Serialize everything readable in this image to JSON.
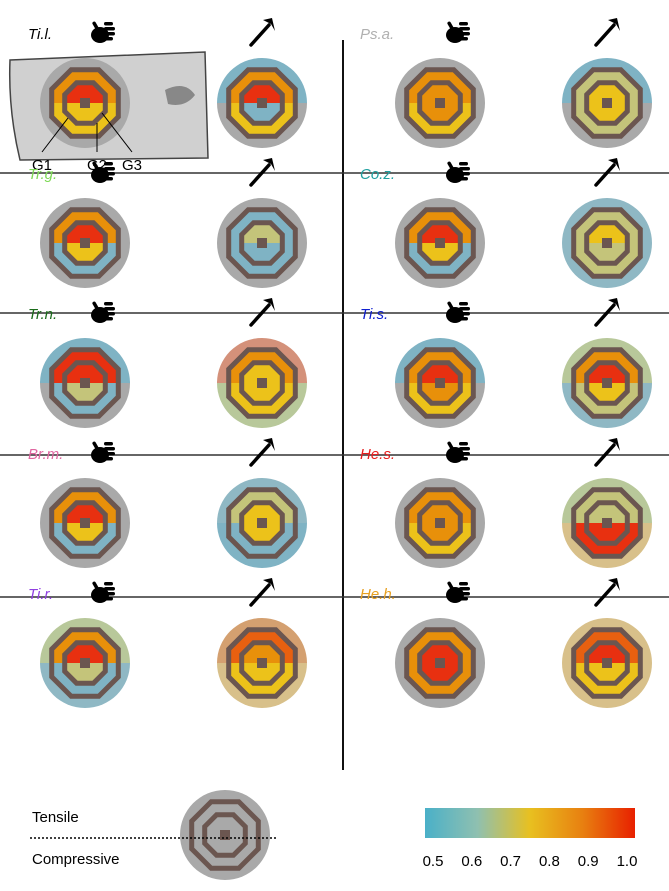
{
  "panels": [
    {
      "label": "Ti.l.",
      "label_color": "#000000",
      "hand": [
        "#a9a9a9",
        "#a9a9a9",
        "#e8900a",
        "#ecc21a",
        "#e83010",
        "#ecc21a"
      ],
      "hammer": [
        "#7fb3c4",
        "#a9a9a9",
        "#e8900a",
        "#ecc21a",
        "#e83010",
        "#7fb3c4"
      ]
    },
    {
      "label": "Ps.a.",
      "label_color": "#b0b0b0",
      "hand": [
        "#a9a9a9",
        "#a9a9a9",
        "#e8900a",
        "#ecc21a",
        "#e8900a",
        "#e8900a"
      ],
      "hammer": [
        "#7fb3c4",
        "#a9a9a9",
        "#c4c47a",
        "#c4c47a",
        "#ecc21a",
        "#ecc21a"
      ]
    },
    {
      "label": "Tr.g.",
      "label_color": "#7ed957",
      "hand": [
        "#a9a9a9",
        "#a9a9a9",
        "#e8900a",
        "#7fb3c4",
        "#e83010",
        "#ecc21a"
      ],
      "hammer": [
        "#a9a9a9",
        "#a9a9a9",
        "#7fb3c4",
        "#7fb3c4",
        "#c4c47a",
        "#7fb3c4"
      ]
    },
    {
      "label": "Co.z.",
      "label_color": "#1fa0a0",
      "hand": [
        "#a9a9a9",
        "#a9a9a9",
        "#e8900a",
        "#7fb3c4",
        "#e83010",
        "#ecc21a"
      ],
      "hammer": [
        "#8fb8c4",
        "#8fb8c4",
        "#c4c47a",
        "#c4c47a",
        "#ecc21a",
        "#c4c47a"
      ]
    },
    {
      "label": "Tr.n.",
      "label_color": "#1a6b1a",
      "hand": [
        "#7fb3c4",
        "#a9a9a9",
        "#e83010",
        "#7fb3c4",
        "#e83010",
        "#c4c47a"
      ],
      "hammer": [
        "#d4917a",
        "#b8c89a",
        "#e8900a",
        "#ecc21a",
        "#ecc21a",
        "#ecc21a"
      ]
    },
    {
      "label": "Ti.s.",
      "label_color": "#1020d0",
      "hand": [
        "#7fb3c4",
        "#a9a9a9",
        "#e8900a",
        "#ecc21a",
        "#e83010",
        "#e8900a"
      ],
      "hammer": [
        "#b8c89a",
        "#8fb8c4",
        "#e8900a",
        "#c4c47a",
        "#e83010",
        "#ecc21a"
      ]
    },
    {
      "label": "Br.m.",
      "label_color": "#e066a0",
      "hand": [
        "#a9a9a9",
        "#a9a9a9",
        "#e8900a",
        "#7fb3c4",
        "#e83010",
        "#ecc21a"
      ],
      "hammer": [
        "#8fb8c4",
        "#7fb3c4",
        "#c4c47a",
        "#7fb3c4",
        "#ecc21a",
        "#ecc21a"
      ]
    },
    {
      "label": "He.s.",
      "label_color": "#e82020",
      "hand": [
        "#a9a9a9",
        "#a9a9a9",
        "#e8900a",
        "#ecc21a",
        "#e8900a",
        "#e8900a"
      ],
      "hammer": [
        "#b8c89a",
        "#d8c08a",
        "#c4c47a",
        "#e83010",
        "#c4c47a",
        "#e83010"
      ]
    },
    {
      "label": "Ti.r.",
      "label_color": "#9040e0",
      "hand": [
        "#b8c89a",
        "#8fb8c4",
        "#e8900a",
        "#7fb3c4",
        "#e83010",
        "#c4c47a"
      ],
      "hammer": [
        "#d4a070",
        "#d8c08a",
        "#e86010",
        "#ecc21a",
        "#e8900a",
        "#ecc21a"
      ]
    },
    {
      "label": "He.h.",
      "label_color": "#e8a020",
      "hand": [
        "#a9a9a9",
        "#a9a9a9",
        "#e8900a",
        "#e8900a",
        "#e83010",
        "#e83010"
      ],
      "hammer": [
        "#d8c08a",
        "#d8c08a",
        "#e86010",
        "#ecc21a",
        "#e83010",
        "#ecc21a"
      ]
    }
  ],
  "annotations": {
    "g_labels": [
      "G1",
      "G2",
      "G3"
    ]
  },
  "legend": {
    "tensile": "Tensile",
    "compressive": "Compressive"
  },
  "colorbar": {
    "ticks": [
      0.5,
      0.6,
      0.7,
      0.8,
      0.9,
      {
        "value": 1,
        "label": "1.0"
      }
    ],
    "colors": [
      "#4ab0c8",
      "#8fc0b0",
      "#e8c020",
      "#e88010",
      "#e82000"
    ]
  }
}
